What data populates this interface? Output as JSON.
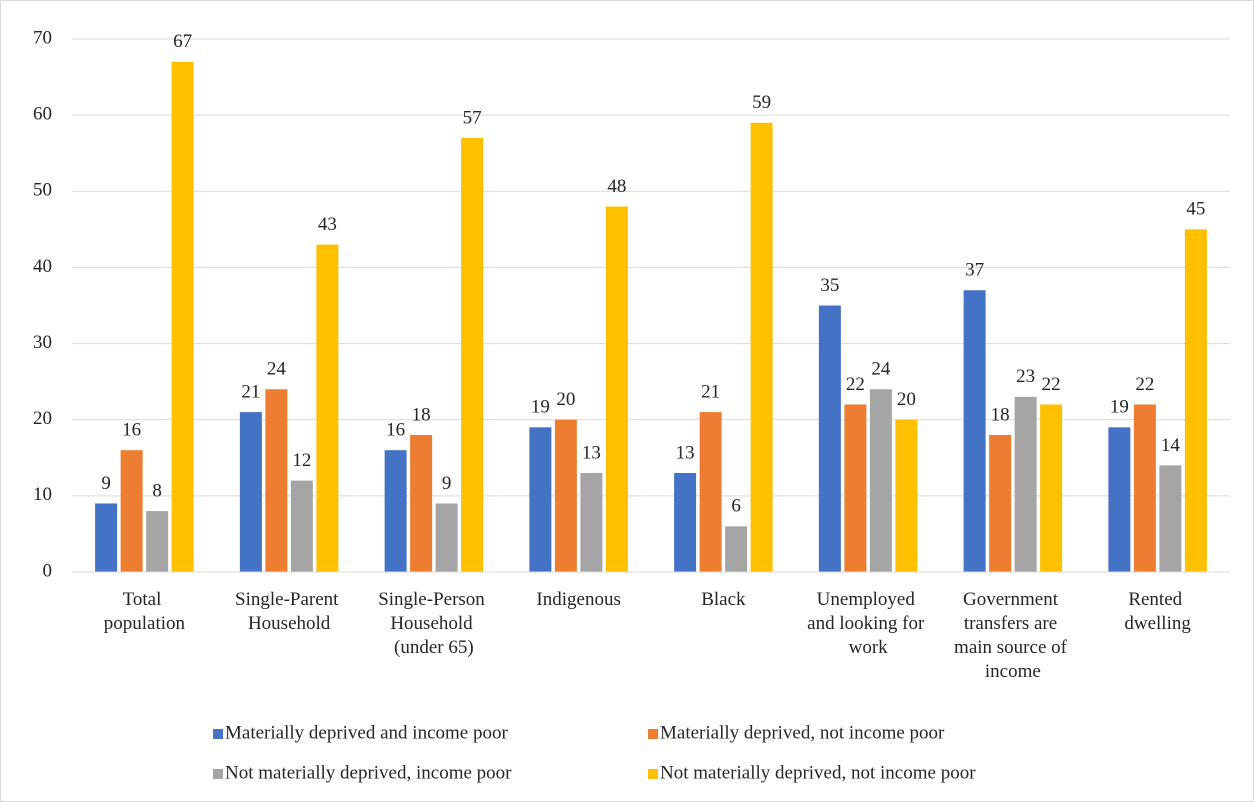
{
  "chart_data": {
    "type": "bar",
    "categories": [
      "Total population",
      "Single-Parent Household",
      "Single-Person Household (under 65)",
      "Indigenous",
      "Black",
      "Unemployed and looking for work",
      "Government transfers are main source of income",
      "Rented dwelling"
    ],
    "series": [
      {
        "name": "Materially deprived and income poor",
        "color": "#4472c4",
        "values": [
          9,
          21,
          16,
          19,
          13,
          35,
          37,
          19
        ]
      },
      {
        "name": "Materially deprived, not income poor",
        "color": "#ed7d31",
        "values": [
          16,
          24,
          18,
          20,
          21,
          22,
          18,
          22
        ]
      },
      {
        "name": "Not materially deprived, income poor",
        "color": "#a5a5a5",
        "values": [
          8,
          12,
          9,
          13,
          6,
          24,
          23,
          14
        ]
      },
      {
        "name": "Not materially deprived, not income poor",
        "color": "#ffc000",
        "values": [
          67,
          43,
          57,
          48,
          59,
          20,
          22,
          45
        ]
      }
    ],
    "ylim": [
      0,
      70
    ],
    "yticks": [
      0,
      10,
      20,
      30,
      40,
      50,
      60,
      70
    ],
    "grid": true,
    "legend": "bottom"
  }
}
